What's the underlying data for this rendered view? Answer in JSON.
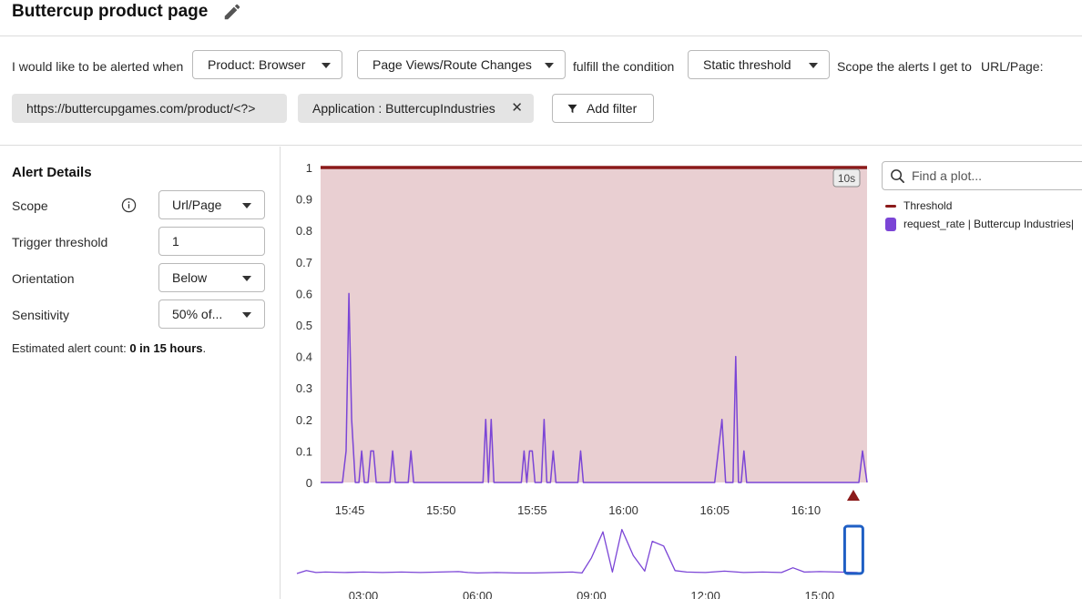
{
  "header": {
    "title": "Buttercup product page"
  },
  "condition": {
    "intro": "I would like to be alerted when",
    "product": "Product: Browser",
    "metric": "Page Views/Route Changes",
    "fulfill": "fulfill the condition",
    "condition_type": "Static threshold",
    "scope_text": "Scope the alerts I get to",
    "scope_label": "URL/Page:",
    "filters": [
      "https://buttercupgames.com/product/<?>",
      "Application : ButtercupIndustries"
    ],
    "add_filter": "Add filter"
  },
  "alert_details": {
    "title": "Alert Details",
    "scope_label": "Scope",
    "scope_value": "Url/Page",
    "trigger_label": "Trigger threshold",
    "trigger_value": "1",
    "orientation_label": "Orientation",
    "orientation_value": "Below",
    "sensitivity_label": "Sensitivity",
    "sensitivity_value": "50% of...",
    "estimate_prefix": "Estimated alert count: ",
    "estimate_value": "0 in 15 hours",
    "estimate_suffix": "."
  },
  "legend": {
    "search_placeholder": "Find a plot...",
    "items": [
      {
        "label": "Threshold",
        "color": "#8b1a1a"
      },
      {
        "label": "request_rate | Buttercup Industries|",
        "color": "#7b45d6"
      }
    ]
  },
  "colors": {
    "threshold": "#8b1a1a",
    "series": "#7b45d6",
    "band": "#e9cfd2",
    "navigator_box": "#1f5fc4"
  },
  "chart_data": [
    {
      "type": "line",
      "resolution_badge": "10s",
      "ylim": [
        0,
        1
      ],
      "y_ticks": [
        "0",
        "0.1",
        "0.2",
        "0.3",
        "0.4",
        "0.5",
        "0.6",
        "0.7",
        "0.8",
        "0.9",
        "1"
      ],
      "x_ticks": [
        {
          "label": "15:45",
          "t": 4
        },
        {
          "label": "15:50",
          "t": 9
        },
        {
          "label": "15:55",
          "t": 14
        },
        {
          "label": "16:00",
          "t": 19
        },
        {
          "label": "16:05",
          "t": 24
        },
        {
          "label": "16:10",
          "t": 29
        }
      ],
      "xlim": [
        2.4,
        32.35
      ],
      "threshold": 1,
      "alert_marker_t": 31.6,
      "series": [
        {
          "name": "request_rate | Buttercup Industries|",
          "points": [
            [
              2.4,
              0
            ],
            [
              3.6,
              0
            ],
            [
              3.8,
              0.1
            ],
            [
              3.95,
              0.6
            ],
            [
              4.1,
              0.2
            ],
            [
              4.3,
              0
            ],
            [
              4.5,
              0
            ],
            [
              4.65,
              0.1
            ],
            [
              4.8,
              0
            ],
            [
              5.0,
              0
            ],
            [
              5.15,
              0.1
            ],
            [
              5.3,
              0.1
            ],
            [
              5.45,
              0
            ],
            [
              6.2,
              0
            ],
            [
              6.35,
              0.1
            ],
            [
              6.5,
              0
            ],
            [
              7.2,
              0
            ],
            [
              7.35,
              0.1
            ],
            [
              7.5,
              0
            ],
            [
              11.3,
              0
            ],
            [
              11.45,
              0.2
            ],
            [
              11.6,
              0
            ],
            [
              11.75,
              0.2
            ],
            [
              11.9,
              0
            ],
            [
              13.4,
              0
            ],
            [
              13.55,
              0.1
            ],
            [
              13.7,
              0
            ],
            [
              13.85,
              0.1
            ],
            [
              14.0,
              0.1
            ],
            [
              14.15,
              0
            ],
            [
              14.5,
              0
            ],
            [
              14.65,
              0.2
            ],
            [
              14.8,
              0
            ],
            [
              15.0,
              0
            ],
            [
              15.15,
              0.1
            ],
            [
              15.3,
              0
            ],
            [
              16.5,
              0
            ],
            [
              16.65,
              0.1
            ],
            [
              16.8,
              0
            ],
            [
              24.0,
              0
            ],
            [
              24.4,
              0.2
            ],
            [
              24.6,
              0
            ],
            [
              25.0,
              0
            ],
            [
              25.15,
              0.4
            ],
            [
              25.3,
              0
            ],
            [
              25.45,
              0
            ],
            [
              25.6,
              0.1
            ],
            [
              25.75,
              0
            ],
            [
              31.9,
              0
            ],
            [
              32.1,
              0.1
            ],
            [
              32.35,
              0
            ]
          ]
        }
      ]
    },
    {
      "type": "line",
      "x_ticks": [
        {
          "label": "03:00",
          "h": 3
        },
        {
          "label": "06:00",
          "h": 6
        },
        {
          "label": "09:00",
          "h": 9
        },
        {
          "label": "12:00",
          "h": 12
        },
        {
          "label": "15:00",
          "h": 15
        }
      ],
      "xlim": [
        1.25,
        16.25
      ],
      "ylim": [
        0,
        1
      ],
      "selection_h": [
        15.9,
        16.2
      ],
      "series": [
        {
          "name": "request_rate | Buttercup Industries|",
          "points": [
            [
              1.25,
              0.02
            ],
            [
              1.5,
              0.08
            ],
            [
              1.75,
              0.04
            ],
            [
              2.0,
              0.05
            ],
            [
              2.5,
              0.04
            ],
            [
              3.0,
              0.05
            ],
            [
              3.5,
              0.04
            ],
            [
              4.0,
              0.05
            ],
            [
              4.5,
              0.04
            ],
            [
              5.0,
              0.05
            ],
            [
              5.5,
              0.06
            ],
            [
              5.75,
              0.04
            ],
            [
              6.0,
              0.03
            ],
            [
              6.5,
              0.04
            ],
            [
              7.0,
              0.03
            ],
            [
              7.5,
              0.03
            ],
            [
              8.0,
              0.04
            ],
            [
              8.5,
              0.05
            ],
            [
              8.75,
              0.03
            ],
            [
              9.0,
              0.35
            ],
            [
              9.3,
              0.9
            ],
            [
              9.55,
              0.05
            ],
            [
              9.8,
              0.95
            ],
            [
              10.1,
              0.4
            ],
            [
              10.4,
              0.07
            ],
            [
              10.6,
              0.7
            ],
            [
              10.9,
              0.6
            ],
            [
              11.2,
              0.08
            ],
            [
              11.5,
              0.05
            ],
            [
              12.0,
              0.04
            ],
            [
              12.5,
              0.07
            ],
            [
              13.0,
              0.04
            ],
            [
              13.5,
              0.05
            ],
            [
              14.0,
              0.04
            ],
            [
              14.3,
              0.14
            ],
            [
              14.6,
              0.05
            ],
            [
              15.0,
              0.06
            ],
            [
              15.5,
              0.05
            ],
            [
              16.0,
              0.04
            ]
          ]
        }
      ]
    }
  ]
}
